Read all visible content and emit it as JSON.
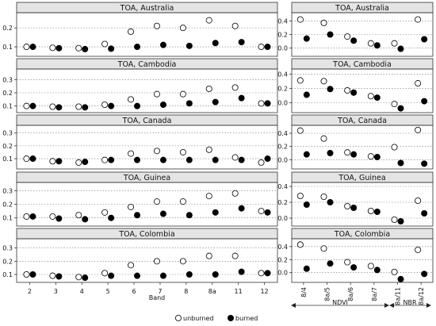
{
  "legend": {
    "unburned": "unburned",
    "burned": "burned"
  },
  "xlabel": "Band",
  "group_labels": {
    "ndvi": "NDVI",
    "nbr": "NBR"
  },
  "colors": {
    "burned": "#000000",
    "unburned": "#ffffff",
    "stroke": "#000000",
    "strip": "#e4e4e4"
  },
  "chart_data": {
    "type": "scatter",
    "left": {
      "categories": [
        "2",
        "3",
        "4",
        "5",
        "6",
        "7",
        "8",
        "8a",
        "11",
        "12"
      ],
      "ylim": [
        0,
        0.4
      ],
      "yticks": [
        "0.1",
        "0.2",
        "0.3"
      ],
      "panels": [
        {
          "title": "TOA, Australia",
          "ylim": [
            0.05,
            0.28
          ],
          "yticks": [
            "0.1",
            "0.2"
          ],
          "unburned": [
            0.1,
            0.095,
            0.093,
            0.115,
            0.18,
            0.21,
            0.2,
            0.24,
            0.21,
            0.1
          ],
          "burned": [
            0.1,
            0.093,
            0.088,
            0.09,
            0.1,
            0.11,
            0.105,
            0.12,
            0.125,
            0.1
          ]
        },
        {
          "title": "TOA, Cambodia",
          "ylim": [
            0.05,
            0.38
          ],
          "yticks": [
            "0.1",
            "0.2",
            "0.3"
          ],
          "unburned": [
            0.1,
            0.095,
            0.095,
            0.11,
            0.15,
            0.19,
            0.19,
            0.23,
            0.24,
            0.12
          ],
          "burned": [
            0.1,
            0.09,
            0.09,
            0.1,
            0.1,
            0.11,
            0.12,
            0.13,
            0.16,
            0.12
          ]
        },
        {
          "title": "TOA, Canada",
          "ylim": [
            0.02,
            0.36
          ],
          "yticks": [
            "0.1",
            "0.2",
            "0.3"
          ],
          "unburned": [
            0.1,
            0.08,
            0.07,
            0.09,
            0.14,
            0.16,
            0.15,
            0.17,
            0.11,
            0.07
          ],
          "burned": [
            0.1,
            0.08,
            0.075,
            0.09,
            0.09,
            0.09,
            0.09,
            0.09,
            0.09,
            0.1
          ]
        },
        {
          "title": "TOA, Guinea",
          "ylim": [
            0.04,
            0.36
          ],
          "yticks": [
            "0.1",
            "0.2",
            "0.3"
          ],
          "unburned": [
            0.11,
            0.11,
            0.12,
            0.14,
            0.18,
            0.22,
            0.22,
            0.26,
            0.28,
            0.15
          ],
          "burned": [
            0.11,
            0.095,
            0.09,
            0.1,
            0.12,
            0.13,
            0.12,
            0.14,
            0.17,
            0.14
          ]
        },
        {
          "title": "TOA, Colombia",
          "ylim": [
            0.04,
            0.37
          ],
          "yticks": [
            "0.1",
            "0.2",
            "0.3"
          ],
          "unburned": [
            0.1,
            0.09,
            0.08,
            0.11,
            0.17,
            0.2,
            0.2,
            0.24,
            0.24,
            0.11
          ],
          "burned": [
            0.1,
            0.085,
            0.075,
            0.09,
            0.09,
            0.09,
            0.1,
            0.1,
            0.12,
            0.11
          ]
        }
      ]
    },
    "right": {
      "categories": [
        "8/4",
        "8a/5",
        "8a/6",
        "8a/7",
        "8a/11",
        "8a/12"
      ],
      "panels": [
        {
          "title": "TOA, Australia",
          "ylim": [
            -0.12,
            0.52
          ],
          "yticks": [
            "0.0",
            "0.2",
            "0.4"
          ],
          "unburned": [
            0.42,
            0.37,
            0.17,
            0.07,
            0.07,
            0.42
          ],
          "burned": [
            0.14,
            0.2,
            0.11,
            0.04,
            -0.01,
            0.13
          ]
        },
        {
          "title": "TOA, Cambodia",
          "ylim": [
            -0.14,
            0.47
          ],
          "yticks": [
            "0.0",
            "0.2",
            "0.4"
          ],
          "unburned": [
            0.31,
            0.3,
            0.17,
            0.09,
            -0.02,
            0.27
          ],
          "burned": [
            0.11,
            0.19,
            0.14,
            0.07,
            -0.08,
            0.02
          ]
        },
        {
          "title": "TOA, Canada",
          "ylim": [
            -0.14,
            0.52
          ],
          "yticks": [
            "0.0",
            "0.2",
            "0.4"
          ],
          "unburned": [
            0.44,
            0.32,
            0.11,
            0.05,
            0.19,
            0.45
          ],
          "burned": [
            0.08,
            0.1,
            0.08,
            0.04,
            -0.05,
            -0.06
          ]
        },
        {
          "title": "TOA, Guinea",
          "ylim": [
            -0.1,
            0.45
          ],
          "yticks": [
            "0.0",
            "0.2",
            "0.4"
          ],
          "unburned": [
            0.28,
            0.27,
            0.15,
            0.09,
            -0.02,
            0.22
          ],
          "burned": [
            0.17,
            0.2,
            0.13,
            0.08,
            -0.04,
            0.06
          ]
        },
        {
          "title": "TOA, Colombia",
          "ylim": [
            -0.15,
            0.52
          ],
          "yticks": [
            "0.0",
            "0.2",
            "0.4"
          ],
          "unburned": [
            0.43,
            0.37,
            0.16,
            0.1,
            0.01,
            0.35
          ],
          "burned": [
            0.06,
            0.14,
            0.08,
            0.04,
            -0.1,
            -0.02
          ]
        }
      ]
    }
  }
}
